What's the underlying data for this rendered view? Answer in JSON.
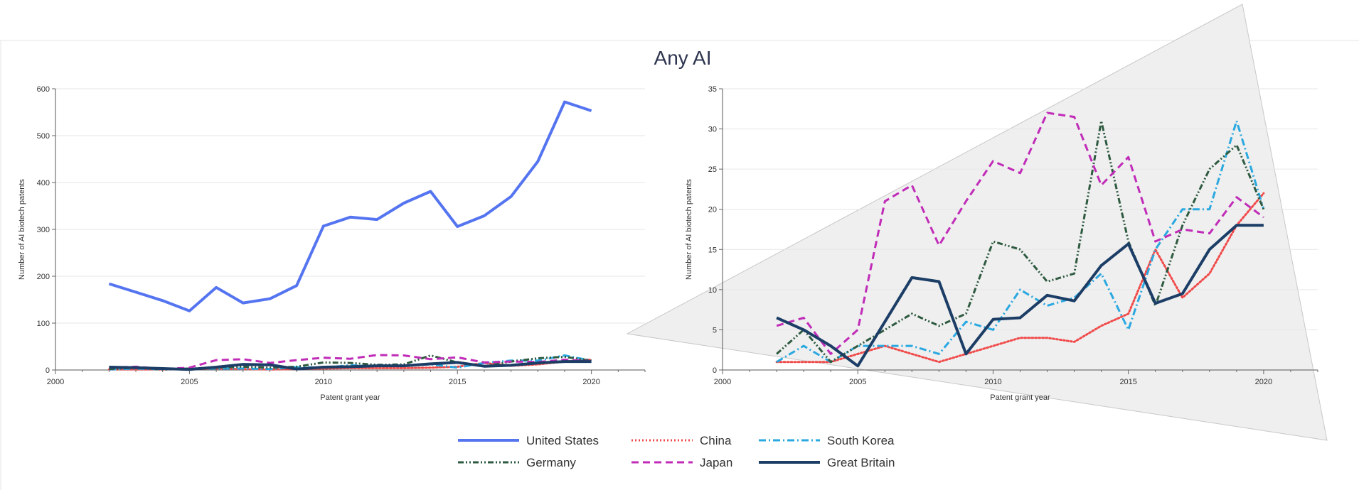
{
  "title": "Any AI",
  "colors": {
    "United States": "#5574f0",
    "China": "#f04a4a",
    "South Korea": "#2aa8e0",
    "Germany": "#2e5a40",
    "Japan": "#c02cb8",
    "Great Britain": "#1b3d66"
  },
  "legend": [
    {
      "name": "United States",
      "dash": "solid",
      "width": 4
    },
    {
      "name": "China",
      "dash": "dot",
      "width": 3
    },
    {
      "name": "South Korea",
      "dash": "dashdot",
      "width": 3
    },
    {
      "name": "Germany",
      "dash": "dashdotdot",
      "width": 3
    },
    {
      "name": "Japan",
      "dash": "dash",
      "width": 3
    },
    {
      "name": "Great Britain",
      "dash": "solid",
      "width": 4
    }
  ],
  "chart_data": [
    {
      "type": "line",
      "ylabel": "Number of AI biotech patents",
      "xlabel": "Patent grant year",
      "xlim": [
        2000,
        2022
      ],
      "ylim": [
        0,
        600
      ],
      "xticks": [
        2000,
        2005,
        2010,
        2015,
        2020
      ],
      "yticks": [
        0,
        100,
        200,
        300,
        400,
        500,
        600
      ],
      "grid": true,
      "x": [
        2002,
        2003,
        2004,
        2005,
        2006,
        2007,
        2008,
        2009,
        2010,
        2011,
        2012,
        2013,
        2014,
        2015,
        2016,
        2017,
        2018,
        2019,
        2020
      ],
      "series": [
        {
          "name": "United States",
          "values": [
            184,
            166,
            148,
            126,
            176,
            143,
            152,
            180,
            307,
            326,
            321,
            356,
            381,
            306,
            329,
            370,
            445,
            572,
            553
          ]
        },
        {
          "name": "China",
          "values": [
            1,
            1,
            1,
            2,
            3,
            2,
            1,
            2,
            3,
            4,
            4,
            4,
            5,
            7,
            15,
            9,
            12,
            18,
            22
          ]
        },
        {
          "name": "South Korea",
          "values": [
            1,
            3,
            1,
            3,
            3,
            3,
            2,
            6,
            5,
            10,
            8,
            9,
            12,
            5,
            15,
            20,
            20,
            31,
            20
          ]
        },
        {
          "name": "Germany",
          "values": [
            2,
            5,
            1,
            3,
            5,
            7,
            5,
            7,
            16,
            15,
            11,
            12,
            31,
            16,
            8,
            18,
            25,
            28,
            20
          ]
        },
        {
          "name": "Japan",
          "values": [
            5,
            7,
            2,
            5,
            21,
            23,
            15,
            21,
            26,
            24,
            32,
            31,
            23,
            27,
            16,
            18,
            17,
            22,
            19
          ]
        },
        {
          "name": "Great Britain",
          "values": [
            6,
            5,
            3,
            1,
            6,
            12,
            11,
            2,
            6,
            7,
            9,
            9,
            13,
            16,
            8,
            10,
            15,
            18,
            18
          ]
        }
      ]
    },
    {
      "type": "line",
      "ylabel": "Number of AI biotech patents",
      "xlabel": "Patent grant year",
      "xlim": [
        2000,
        2022
      ],
      "ylim": [
        0,
        35
      ],
      "xticks": [
        2000,
        2005,
        2010,
        2015,
        2020
      ],
      "yticks": [
        0,
        5,
        10,
        15,
        20,
        25,
        30,
        35
      ],
      "grid": true,
      "x": [
        2002,
        2003,
        2004,
        2005,
        2006,
        2007,
        2008,
        2009,
        2010,
        2011,
        2012,
        2013,
        2014,
        2015,
        2016,
        2017,
        2018,
        2019,
        2020
      ],
      "series": [
        {
          "name": "China",
          "values": [
            1,
            1,
            1,
            2,
            3,
            2,
            1,
            2,
            3,
            4,
            4,
            3.5,
            5.5,
            7,
            15,
            9,
            12,
            18,
            22
          ]
        },
        {
          "name": "South Korea",
          "values": [
            1,
            3,
            1,
            3,
            3,
            3,
            2,
            6,
            5,
            10,
            8,
            9,
            12,
            5,
            15,
            20,
            20,
            31,
            20
          ]
        },
        {
          "name": "Germany",
          "values": [
            2,
            5,
            1,
            3,
            5,
            7,
            5.5,
            7,
            16,
            15,
            11,
            12,
            31,
            16,
            8,
            18,
            25,
            28,
            20
          ]
        },
        {
          "name": "Japan",
          "values": [
            5.5,
            6.5,
            2,
            5,
            21,
            23,
            15.5,
            21,
            26,
            24.5,
            32,
            31.5,
            23,
            26.5,
            16,
            17.5,
            17,
            21.5,
            19
          ]
        },
        {
          "name": "Great Britain",
          "values": [
            6.5,
            5,
            3,
            0.5,
            6,
            11.5,
            11,
            2,
            6.3,
            6.5,
            9.3,
            8.6,
            13,
            15.7,
            8.3,
            9.5,
            15,
            18,
            18
          ]
        }
      ]
    }
  ]
}
